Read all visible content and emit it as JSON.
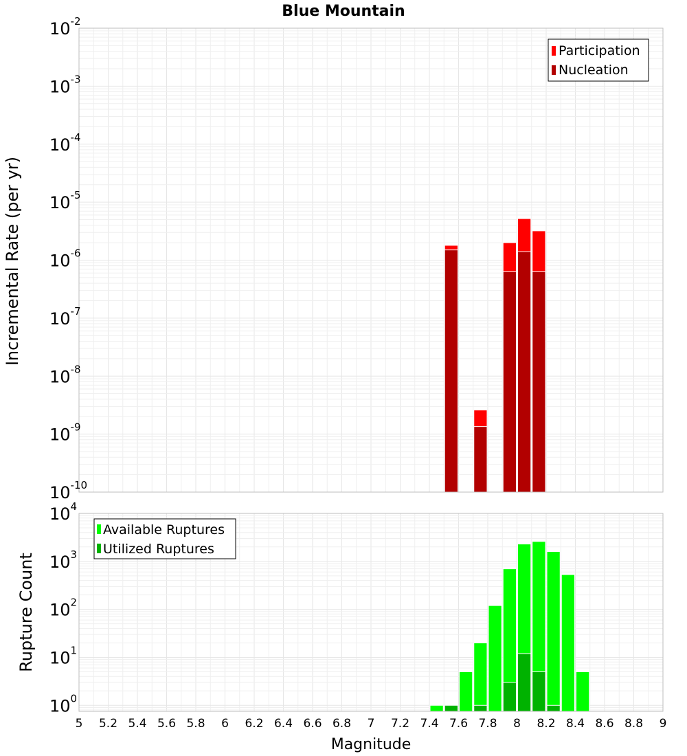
{
  "title": "Blue Mountain",
  "chart_data": [
    {
      "type": "bar",
      "ylabel": "Incremental Rate (per yr)",
      "xlabel": "",
      "xlim": [
        5,
        9
      ],
      "yscale": "log",
      "ylim": [
        1e-10,
        0.01
      ],
      "ytick_exponents": [
        -10,
        -9,
        -8,
        -7,
        -6,
        -5,
        -4,
        -3,
        -2
      ],
      "bar_width": 0.1,
      "legend_position": "top-right",
      "grid": true,
      "series": [
        {
          "name": "Participation",
          "color": "#ff0000",
          "x": [
            7.55,
            7.75,
            7.95,
            8.05,
            8.15
          ],
          "values": [
            1.8e-06,
            2.6e-09,
            2e-06,
            5.2e-06,
            3.2e-06
          ]
        },
        {
          "name": "Nucleation",
          "color": "#b20000",
          "x": [
            7.55,
            7.75,
            7.95,
            8.05,
            8.15
          ],
          "values": [
            1.5e-06,
            1.35e-09,
            6.3e-07,
            1.4e-06,
            6.3e-07
          ]
        }
      ]
    },
    {
      "type": "bar",
      "ylabel": "Rupture Count",
      "xlabel": "Magnitude",
      "xlim": [
        5,
        9
      ],
      "xticks": [
        "5",
        "5.2",
        "5.4",
        "5.6",
        "5.8",
        "6",
        "6.2",
        "6.4",
        "6.6",
        "6.8",
        "7",
        "7.2",
        "7.4",
        "7.6",
        "7.8",
        "8",
        "8.2",
        "8.4",
        "8.6",
        "8.8",
        "9"
      ],
      "yscale": "log",
      "ylim": [
        0.75,
        10000.0
      ],
      "ytick_exponents": [
        0,
        1,
        2,
        3,
        4
      ],
      "bar_width": 0.1,
      "legend_position": "top-left",
      "grid": true,
      "series": [
        {
          "name": "Available Ruptures",
          "color": "#00ff00",
          "x": [
            7.45,
            7.55,
            7.65,
            7.75,
            7.85,
            7.95,
            8.05,
            8.15,
            8.25,
            8.35,
            8.45
          ],
          "values": [
            1,
            1,
            5,
            20,
            120,
            700,
            2300,
            2600,
            1600,
            530,
            5
          ]
        },
        {
          "name": "Utilized Ruptures",
          "color": "#00b200",
          "x": [
            7.55,
            7.75,
            7.95,
            8.05,
            8.15,
            8.25
          ],
          "values": [
            1,
            1,
            3,
            12,
            5,
            1
          ]
        }
      ]
    }
  ]
}
